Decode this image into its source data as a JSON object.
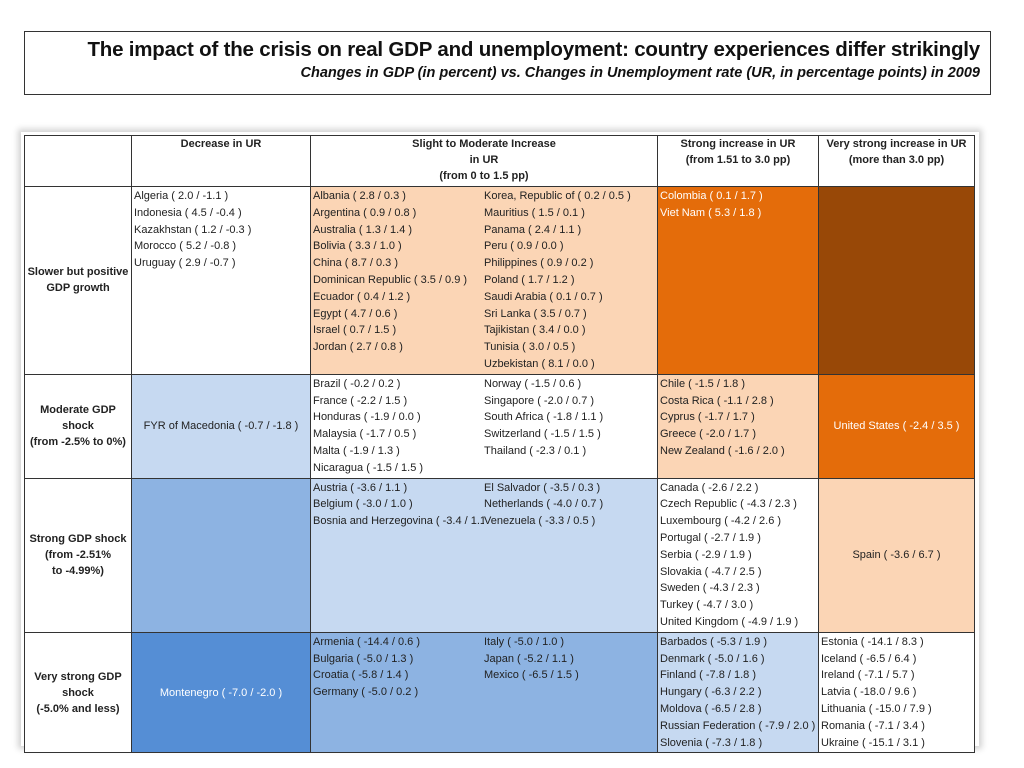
{
  "header": {
    "title": "The impact of the crisis on real GDP and unemployment: country experiences differ strikingly",
    "subtitle": "Changes in GDP (in percent) vs. Changes in Unemployment rate (UR, in percentage points) in 2009"
  },
  "columns": {
    "c1": [
      "Decrease in UR"
    ],
    "c2": [
      "Slight to Moderate Increase",
      "in UR",
      "(from 0 to 1.5 pp)"
    ],
    "c3": [
      "Strong increase in UR",
      "(from 1.51 to 3.0 pp)"
    ],
    "c4": [
      "Very strong increase in UR",
      "(more than 3.0 pp)"
    ]
  },
  "colors": {
    "light_blue": "#c6d9f1",
    "mid_blue": "#8db3e2",
    "dark_blue": "#558ed5",
    "light_orange": "#fbd5b5",
    "orange": "#e46c0a",
    "brown": "#984807",
    "white": "#ffffff"
  },
  "rows": [
    {
      "label": [
        "Slower but positive",
        "GDP growth"
      ],
      "decrease": [
        "Algeria ( 2.0 / -1.1 )",
        "Indonesia ( 4.5 / -0.4 )",
        "Kazakhstan ( 1.2 / -0.3 )",
        "Morocco ( 5.2 / -0.8 )",
        "Uruguay ( 2.9 / -0.7 )"
      ],
      "moderate_a": [
        "Albania ( 2.8 / 0.3 )",
        "Argentina  ( 0.9 / 0.8 )",
        "Australia ( 1.3 / 1.4 )",
        "Bolivia ( 3.3 / 1.0 )",
        "China ( 8.7 / 0.3 )",
        "Dominican Republic ( 3.5 / 0.9 )",
        "Ecuador ( 0.4 / 1.2 )",
        "Egypt ( 4.7 / 0.6 )",
        "Israel ( 0.7 / 1.5 )",
        "Jordan ( 2.7 / 0.8 )"
      ],
      "moderate_b": [
        "Korea, Republic of ( 0.2 / 0.5 )",
        "Mauritius ( 1.5 / 0.1 )",
        "Panama ( 2.4 / 1.1 )",
        "Peru ( 0.9 / 0.0 )",
        "Philippines ( 0.9 / 0.2 )",
        "Poland ( 1.7 / 1.2 )",
        "Saudi Arabia ( 0.1 / 0.7 )",
        "Sri Lanka ( 3.5 / 0.7 )",
        "Tajikistan ( 3.4 / 0.0 )",
        "Tunisia ( 3.0 / 0.5 )",
        "Uzbekistan ( 8.1 / 0.0 )"
      ],
      "strong": [
        "Colombia ( 0.1 / 1.7 )",
        "Viet Nam ( 5.3 / 1.8 )"
      ],
      "very_strong": []
    },
    {
      "label": [
        "Moderate GDP",
        "shock",
        "(from -2.5% to 0%)"
      ],
      "decrease": [
        "FYR of Macedonia ( -0.7 / -1.8 )"
      ],
      "moderate_a": [
        "Brazil ( -0.2 / 0.2 )",
        "France ( -2.2 / 1.5 )",
        "Honduras ( -1.9 / 0.0 )",
        "Malaysia ( -1.7 / 0.5 )",
        "Malta ( -1.9 / 1.3 )",
        "Nicaragua ( -1.5 / 1.5 )"
      ],
      "moderate_b": [
        "Norway ( -1.5 / 0.6 )",
        "Singapore ( -2.0 / 0.7 )",
        "South Africa ( -1.8 / 1.1 )",
        "Switzerland ( -1.5 / 1.5 )",
        "Thailand ( -2.3 / 0.1 )"
      ],
      "strong": [
        "Chile ( -1.5 / 1.8 )",
        "Costa Rica ( -1.1 / 2.8 )",
        "Cyprus ( -1.7 / 1.7 )",
        "Greece ( -2.0 / 1.7 )",
        "New Zealand ( -1.6 / 2.0 )"
      ],
      "very_strong": [
        "United States ( -2.4 / 3.5 )"
      ]
    },
    {
      "label": [
        "Strong GDP shock",
        "(from -2.51%",
        "to -4.99%)"
      ],
      "decrease": [],
      "moderate_a": [
        "Austria ( -3.6 / 1.1 )",
        "Belgium ( -3.0 / 1.0 )",
        "Bosnia and Herzegovina ( -3.4 / 1.1 )"
      ],
      "moderate_b": [
        "El Salvador ( -3.5 / 0.3 )",
        "Netherlands ( -4.0 / 0.7 )",
        "Venezuela ( -3.3 / 0.5 )"
      ],
      "strong": [
        "Canada ( -2.6 / 2.2 )",
        "Czech Republic ( -4.3 / 2.3 )",
        "Luxembourg ( -4.2 / 2.6 )",
        "Portugal ( -2.7 / 1.9 )",
        "Serbia ( -2.9 / 1.9 )",
        "Slovakia ( -4.7 / 2.5 )",
        "Sweden ( -4.3 / 2.3 )",
        "Turkey ( -4.7 / 3.0 )",
        "United Kingdom ( -4.9 / 1.9 )"
      ],
      "very_strong": [
        "Spain ( -3.6 / 6.7 )"
      ]
    },
    {
      "label": [
        "Very strong GDP",
        "shock",
        "(-5.0% and less)"
      ],
      "decrease": [
        "Montenegro ( -7.0 / -2.0 )"
      ],
      "moderate_a": [
        "Armenia ( -14.4 / 0.6 )",
        "Bulgaria ( -5.0 / 1.3 )",
        "Croatia ( -5.8 / 1.4 )",
        "Germany ( -5.0 / 0.2 )"
      ],
      "moderate_b": [
        "Italy ( -5.0 / 1.0 )",
        "Japan ( -5.2 / 1.1 )",
        "Mexico ( -6.5 / 1.5 )"
      ],
      "strong": [
        "Barbados ( -5.3 / 1.9 )",
        "Denmark ( -5.0 / 1.6 )",
        "Finland ( -7.8 / 1.8 )",
        "Hungary ( -6.3 / 2.2 )",
        "Moldova ( -6.5 / 2.8 )",
        "Russian Federation ( -7.9 / 2.0 )",
        "Slovenia ( -7.3 / 1.8 )"
      ],
      "very_strong": [
        "Estonia ( -14.1 / 8.3 )",
        "Iceland ( -6.5 / 6.4 )",
        "Ireland ( -7.1 / 5.7 )",
        "Latvia ( -18.0 / 9.6 )",
        "Lithuania ( -15.0 / 7.9 )",
        "Romania ( -7.1 / 3.4 )",
        "Ukraine ( -15.1 / 3.1 )"
      ]
    }
  ]
}
